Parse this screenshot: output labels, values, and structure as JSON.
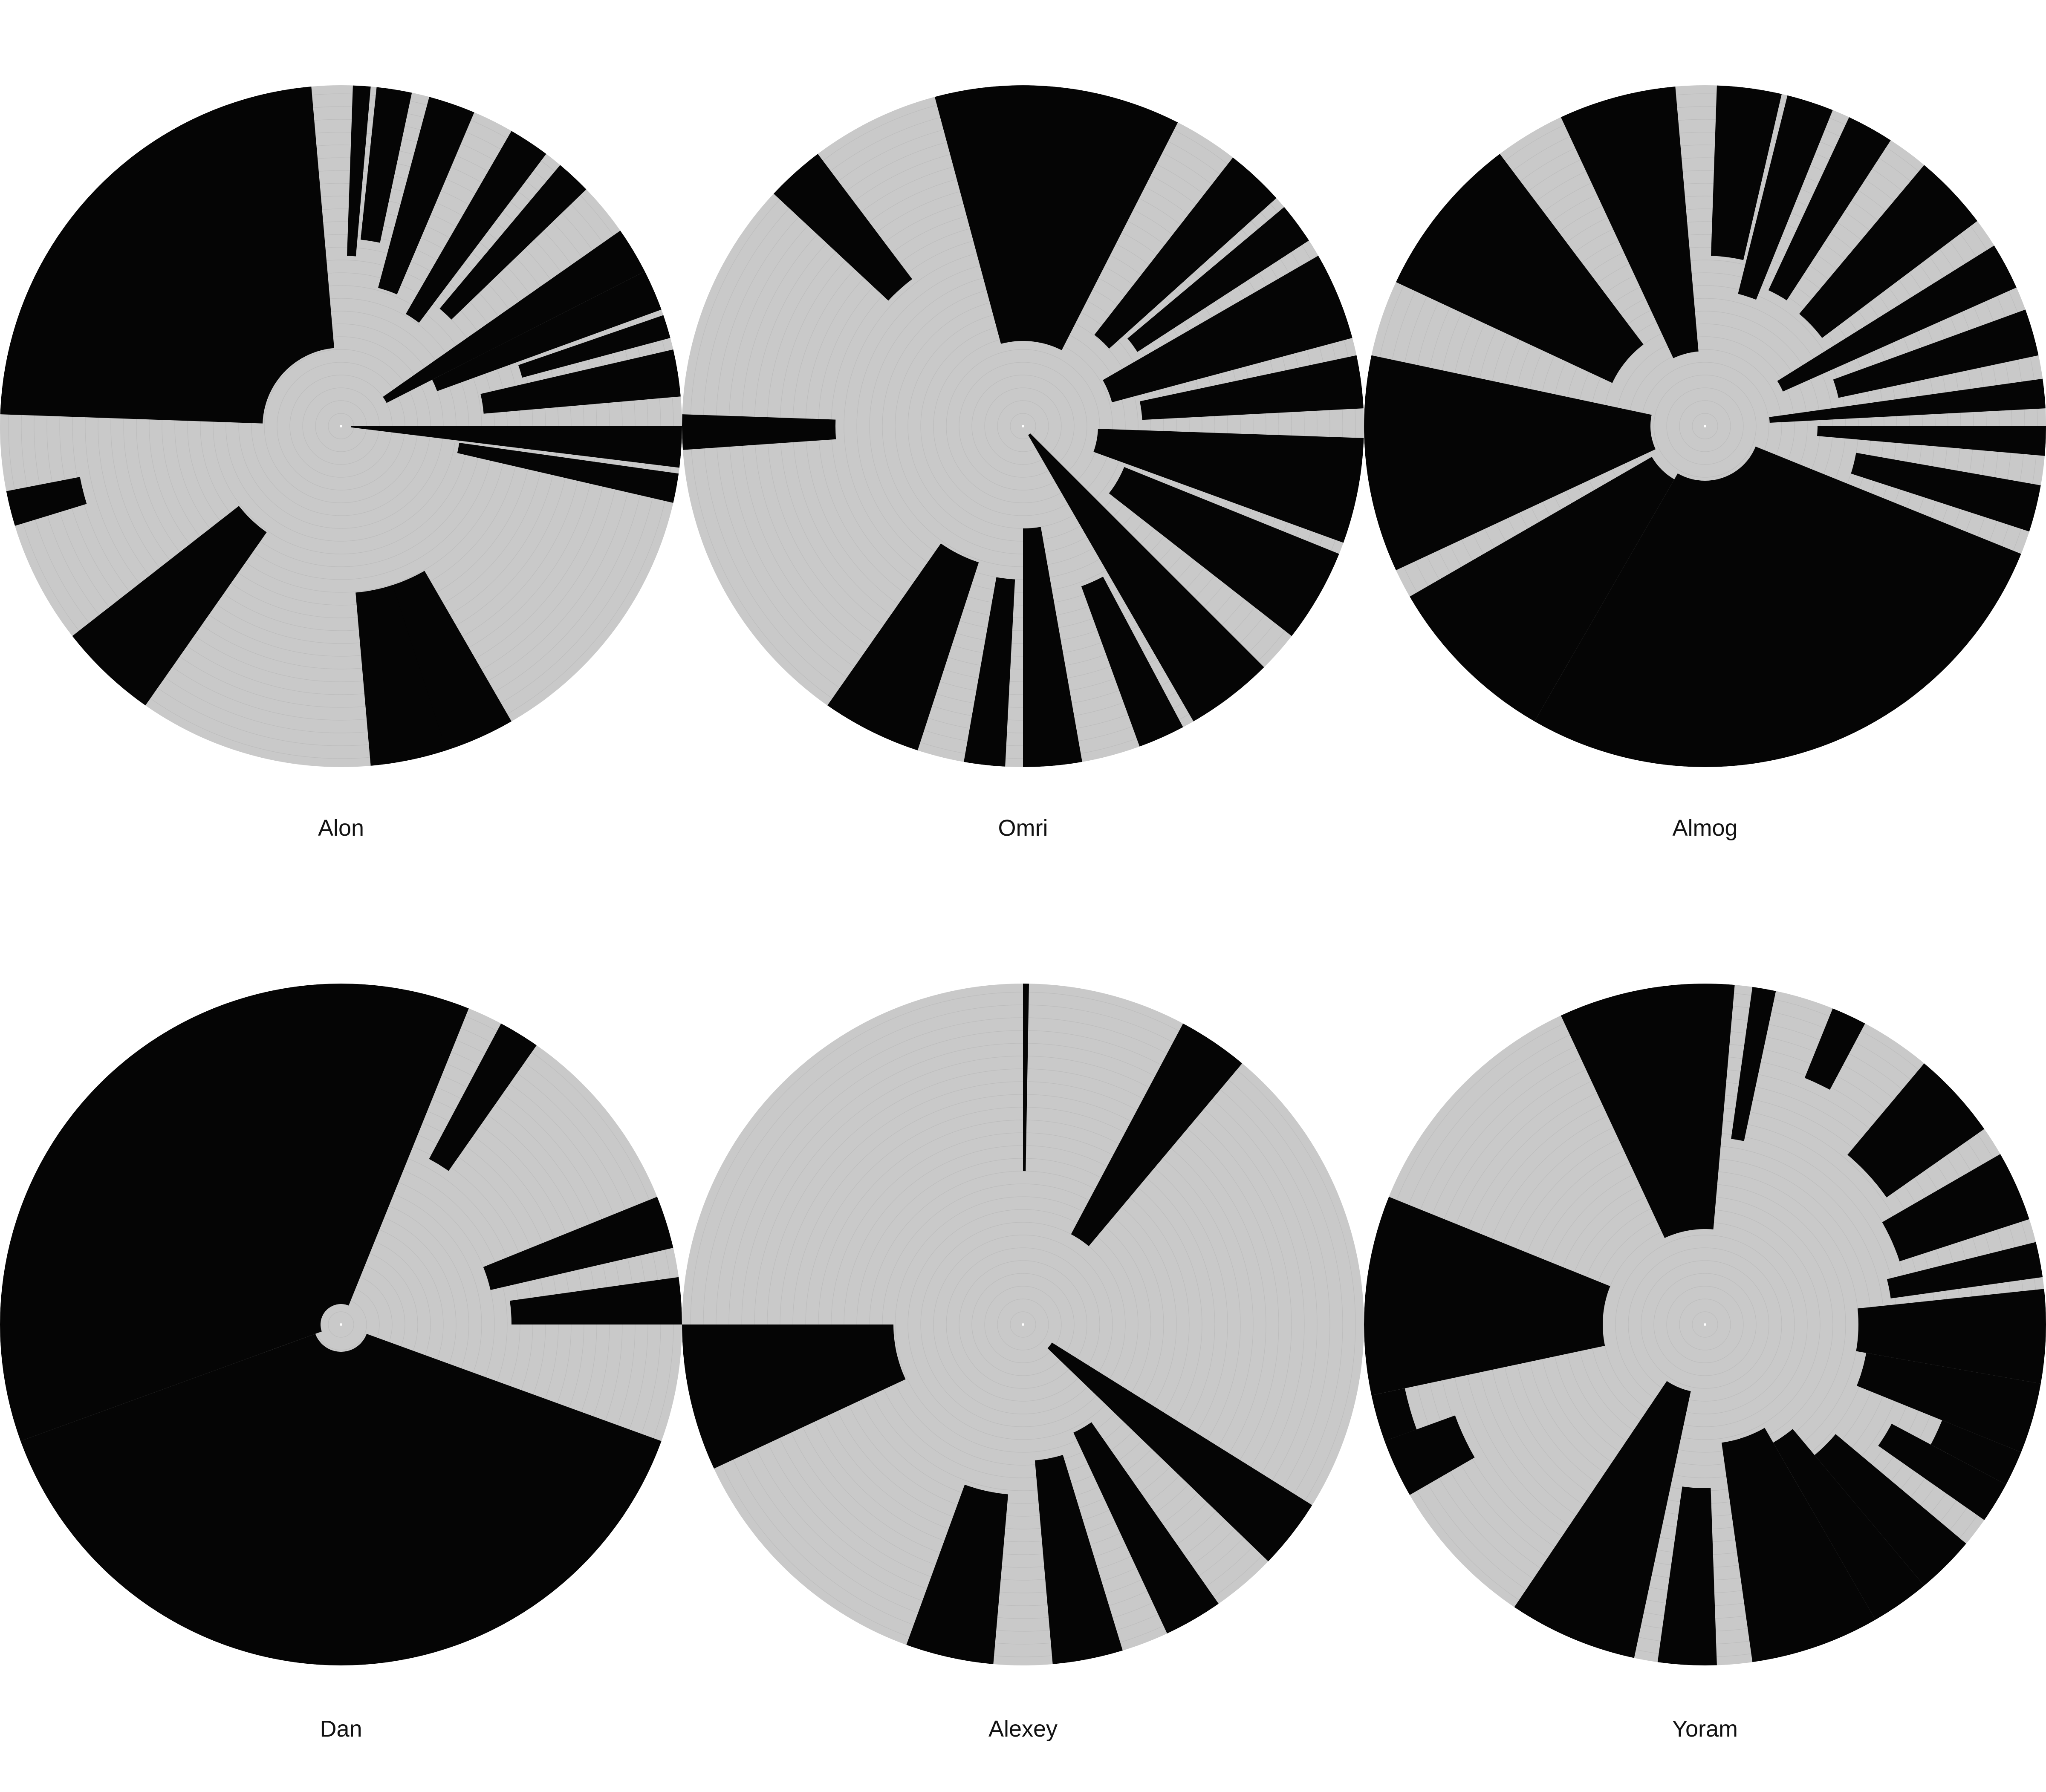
{
  "colors": {
    "light": "#c9c9c9",
    "dark": "#050505",
    "label": "#111111",
    "background": "#ffffff"
  },
  "discs": [
    {
      "label": "Alon"
    },
    {
      "label": "Omri"
    },
    {
      "label": "Almog"
    },
    {
      "label": "Dan"
    },
    {
      "label": "Alexey"
    },
    {
      "label": "Yoram"
    }
  ]
}
